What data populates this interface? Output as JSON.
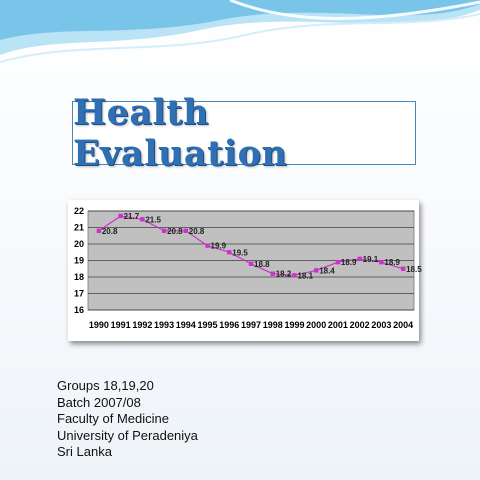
{
  "slide": {
    "title": "Health Evaluation",
    "info_lines": [
      "Groups 18,19,20",
      "Batch 2007/08",
      "Faculty of Medicine",
      "University of Peradeniya",
      "Sri Lanka"
    ]
  },
  "colors": {
    "title": "#2f6fb3",
    "plot_background": "#c0c0c0",
    "series": "#cc33cc",
    "wave": "#7ec6e8"
  },
  "chart_data": {
    "type": "line",
    "title": "",
    "xlabel": "",
    "ylabel": "",
    "ylim": [
      16,
      22
    ],
    "yticks": [
      16,
      17,
      18,
      19,
      20,
      21,
      22
    ],
    "grid": true,
    "legend": "none",
    "categories": [
      "1990",
      "1991",
      "1992",
      "1993",
      "1994",
      "1995",
      "1996",
      "1997",
      "1998",
      "1999",
      "2000",
      "2001",
      "2002",
      "2003",
      "2004"
    ],
    "values": [
      20.8,
      21.7,
      21.5,
      20.8,
      20.8,
      19.9,
      19.5,
      18.8,
      18.2,
      18.1,
      18.4,
      18.9,
      19.1,
      18.9,
      18.5
    ]
  }
}
